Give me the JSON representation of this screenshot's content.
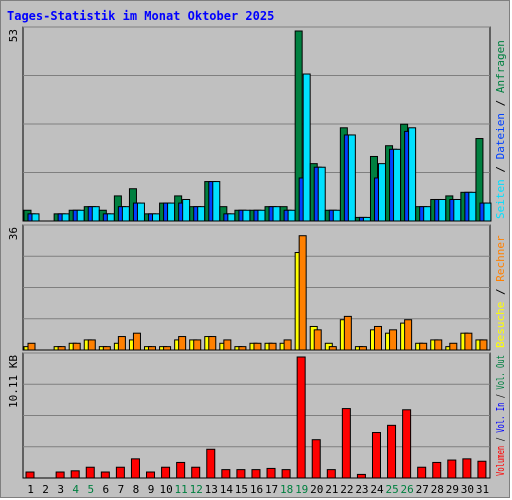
{
  "title": "Tages-Statistik im Monat Oktober 2025",
  "colors": {
    "title": "#0000ff",
    "background": "#c0c0c0",
    "plot_bg": "#c0c0c0",
    "grid": "#7f7f7f",
    "anfragen": "#008040",
    "dateien": "#0040ff",
    "seiten": "#00e0ff",
    "besuche": "#ffff00",
    "rechner": "#ff8000",
    "volumen": "#ff0000",
    "vol_in": "#0000ff",
    "vol_out": "#008040",
    "weekend": "#008040",
    "weekday": "#000000"
  },
  "chart_data": [
    {
      "type": "bar",
      "panel": "top",
      "ymax_label": "53",
      "ylim": [
        0,
        53
      ],
      "right_label": [
        {
          "text": "Seiten",
          "color_key": "seiten"
        },
        {
          "text": " / ",
          "color_key": "weekday"
        },
        {
          "text": "Dateien",
          "color_key": "dateien"
        },
        {
          "text": " / ",
          "color_key": "weekday"
        },
        {
          "text": "Anfragen",
          "color_key": "anfragen"
        }
      ],
      "series": [
        {
          "name": "Anfragen",
          "color_key": "anfragen",
          "values": [
            3,
            0,
            2,
            3,
            4,
            3,
            7,
            9,
            2,
            5,
            7,
            4,
            11,
            4,
            3,
            3,
            4,
            4,
            53,
            16,
            3,
            26,
            1,
            18,
            21,
            27,
            4,
            6,
            7,
            8,
            23
          ]
        },
        {
          "name": "Dateien",
          "color_key": "dateien",
          "values": [
            2,
            0,
            2,
            3,
            4,
            2,
            4,
            5,
            2,
            5,
            5,
            4,
            11,
            2,
            3,
            3,
            4,
            3,
            12,
            15,
            3,
            24,
            1,
            12,
            20,
            25,
            4,
            6,
            6,
            8,
            5
          ]
        },
        {
          "name": "Seiten",
          "color_key": "seiten",
          "values": [
            2,
            0,
            2,
            3,
            4,
            2,
            4,
            5,
            2,
            5,
            6,
            4,
            11,
            2,
            3,
            3,
            4,
            3,
            41,
            15,
            3,
            24,
            1,
            16,
            20,
            26,
            4,
            6,
            6,
            8,
            5
          ]
        }
      ]
    },
    {
      "type": "bar",
      "panel": "middle",
      "ymax_label": "36",
      "ylim": [
        0,
        36
      ],
      "right_label": [
        {
          "text": "Besuche",
          "color_key": "besuche"
        },
        {
          "text": " / ",
          "color_key": "weekday"
        },
        {
          "text": "Rechner",
          "color_key": "rechner"
        }
      ],
      "series": [
        {
          "name": "Besuche",
          "color_key": "besuche",
          "values": [
            1,
            0,
            1,
            2,
            3,
            1,
            2,
            3,
            1,
            1,
            3,
            3,
            4,
            2,
            1,
            2,
            2,
            2,
            29,
            7,
            2,
            9,
            1,
            6,
            5,
            8,
            2,
            3,
            1,
            5,
            3
          ]
        },
        {
          "name": "Rechner",
          "color_key": "rechner",
          "values": [
            2,
            0,
            1,
            2,
            3,
            1,
            4,
            5,
            1,
            1,
            4,
            3,
            4,
            3,
            1,
            2,
            2,
            3,
            34,
            6,
            1,
            10,
            1,
            7,
            6,
            9,
            2,
            3,
            2,
            5,
            3
          ]
        }
      ]
    },
    {
      "type": "bar",
      "panel": "bottom",
      "ymax_label": "10.11 KB",
      "ylim": [
        0,
        10.11
      ],
      "right_label": [
        {
          "text": "Volumen",
          "color_key": "volumen"
        },
        {
          "text": " / ",
          "color_key": "weekday"
        },
        {
          "text": "Vol. In",
          "color_key": "vol_in"
        },
        {
          "text": " / ",
          "color_key": "weekday"
        },
        {
          "text": "Vol. Out",
          "color_key": "vol_out"
        }
      ],
      "series": [
        {
          "name": "Volumen",
          "color_key": "volumen",
          "values": [
            0.5,
            0,
            0.5,
            0.6,
            0.9,
            0.5,
            0.9,
            1.6,
            0.5,
            0.9,
            1.3,
            0.9,
            2.4,
            0.7,
            0.7,
            0.7,
            0.8,
            0.7,
            10.11,
            3.2,
            0.7,
            5.8,
            0.3,
            3.8,
            4.4,
            5.7,
            0.9,
            1.3,
            1.5,
            1.6,
            1.4
          ]
        }
      ]
    }
  ],
  "days": [
    "1",
    "2",
    "3",
    "4",
    "5",
    "6",
    "7",
    "8",
    "9",
    "10",
    "11",
    "12",
    "13",
    "14",
    "15",
    "16",
    "17",
    "18",
    "19",
    "20",
    "21",
    "22",
    "23",
    "24",
    "25",
    "26",
    "27",
    "28",
    "29",
    "30",
    "31"
  ],
  "weekend_days": [
    "4",
    "5",
    "11",
    "12",
    "18",
    "19",
    "25",
    "26"
  ]
}
